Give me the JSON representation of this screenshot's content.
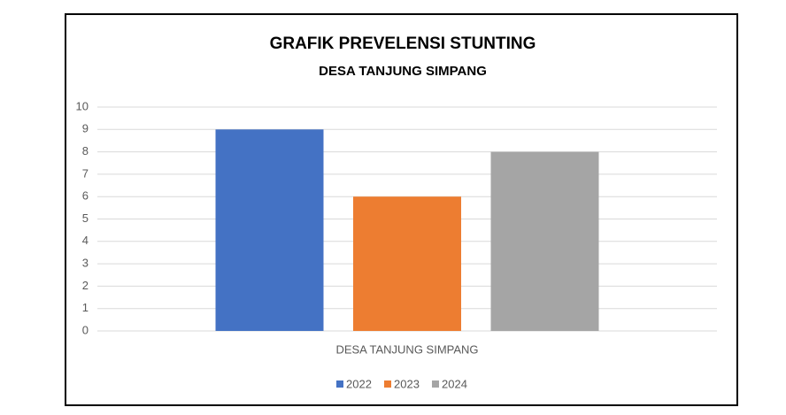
{
  "chart_data": {
    "type": "bar",
    "title": "GRAFIK PREVELENSI STUNTING",
    "subtitle": "DESA TANJUNG SIMPANG",
    "categories": [
      "DESA TANJUNG SIMPANG"
    ],
    "series": [
      {
        "name": "2022",
        "color": "#4472c4",
        "values": [
          9
        ]
      },
      {
        "name": "2023",
        "color": "#ed7d31",
        "values": [
          6
        ]
      },
      {
        "name": "2024",
        "color": "#a5a5a5",
        "values": [
          8
        ]
      }
    ],
    "ylim": [
      0,
      10
    ],
    "yticks": [
      0,
      1,
      2,
      3,
      4,
      5,
      6,
      7,
      8,
      9,
      10
    ],
    "grid": true,
    "legend": "bottom"
  }
}
